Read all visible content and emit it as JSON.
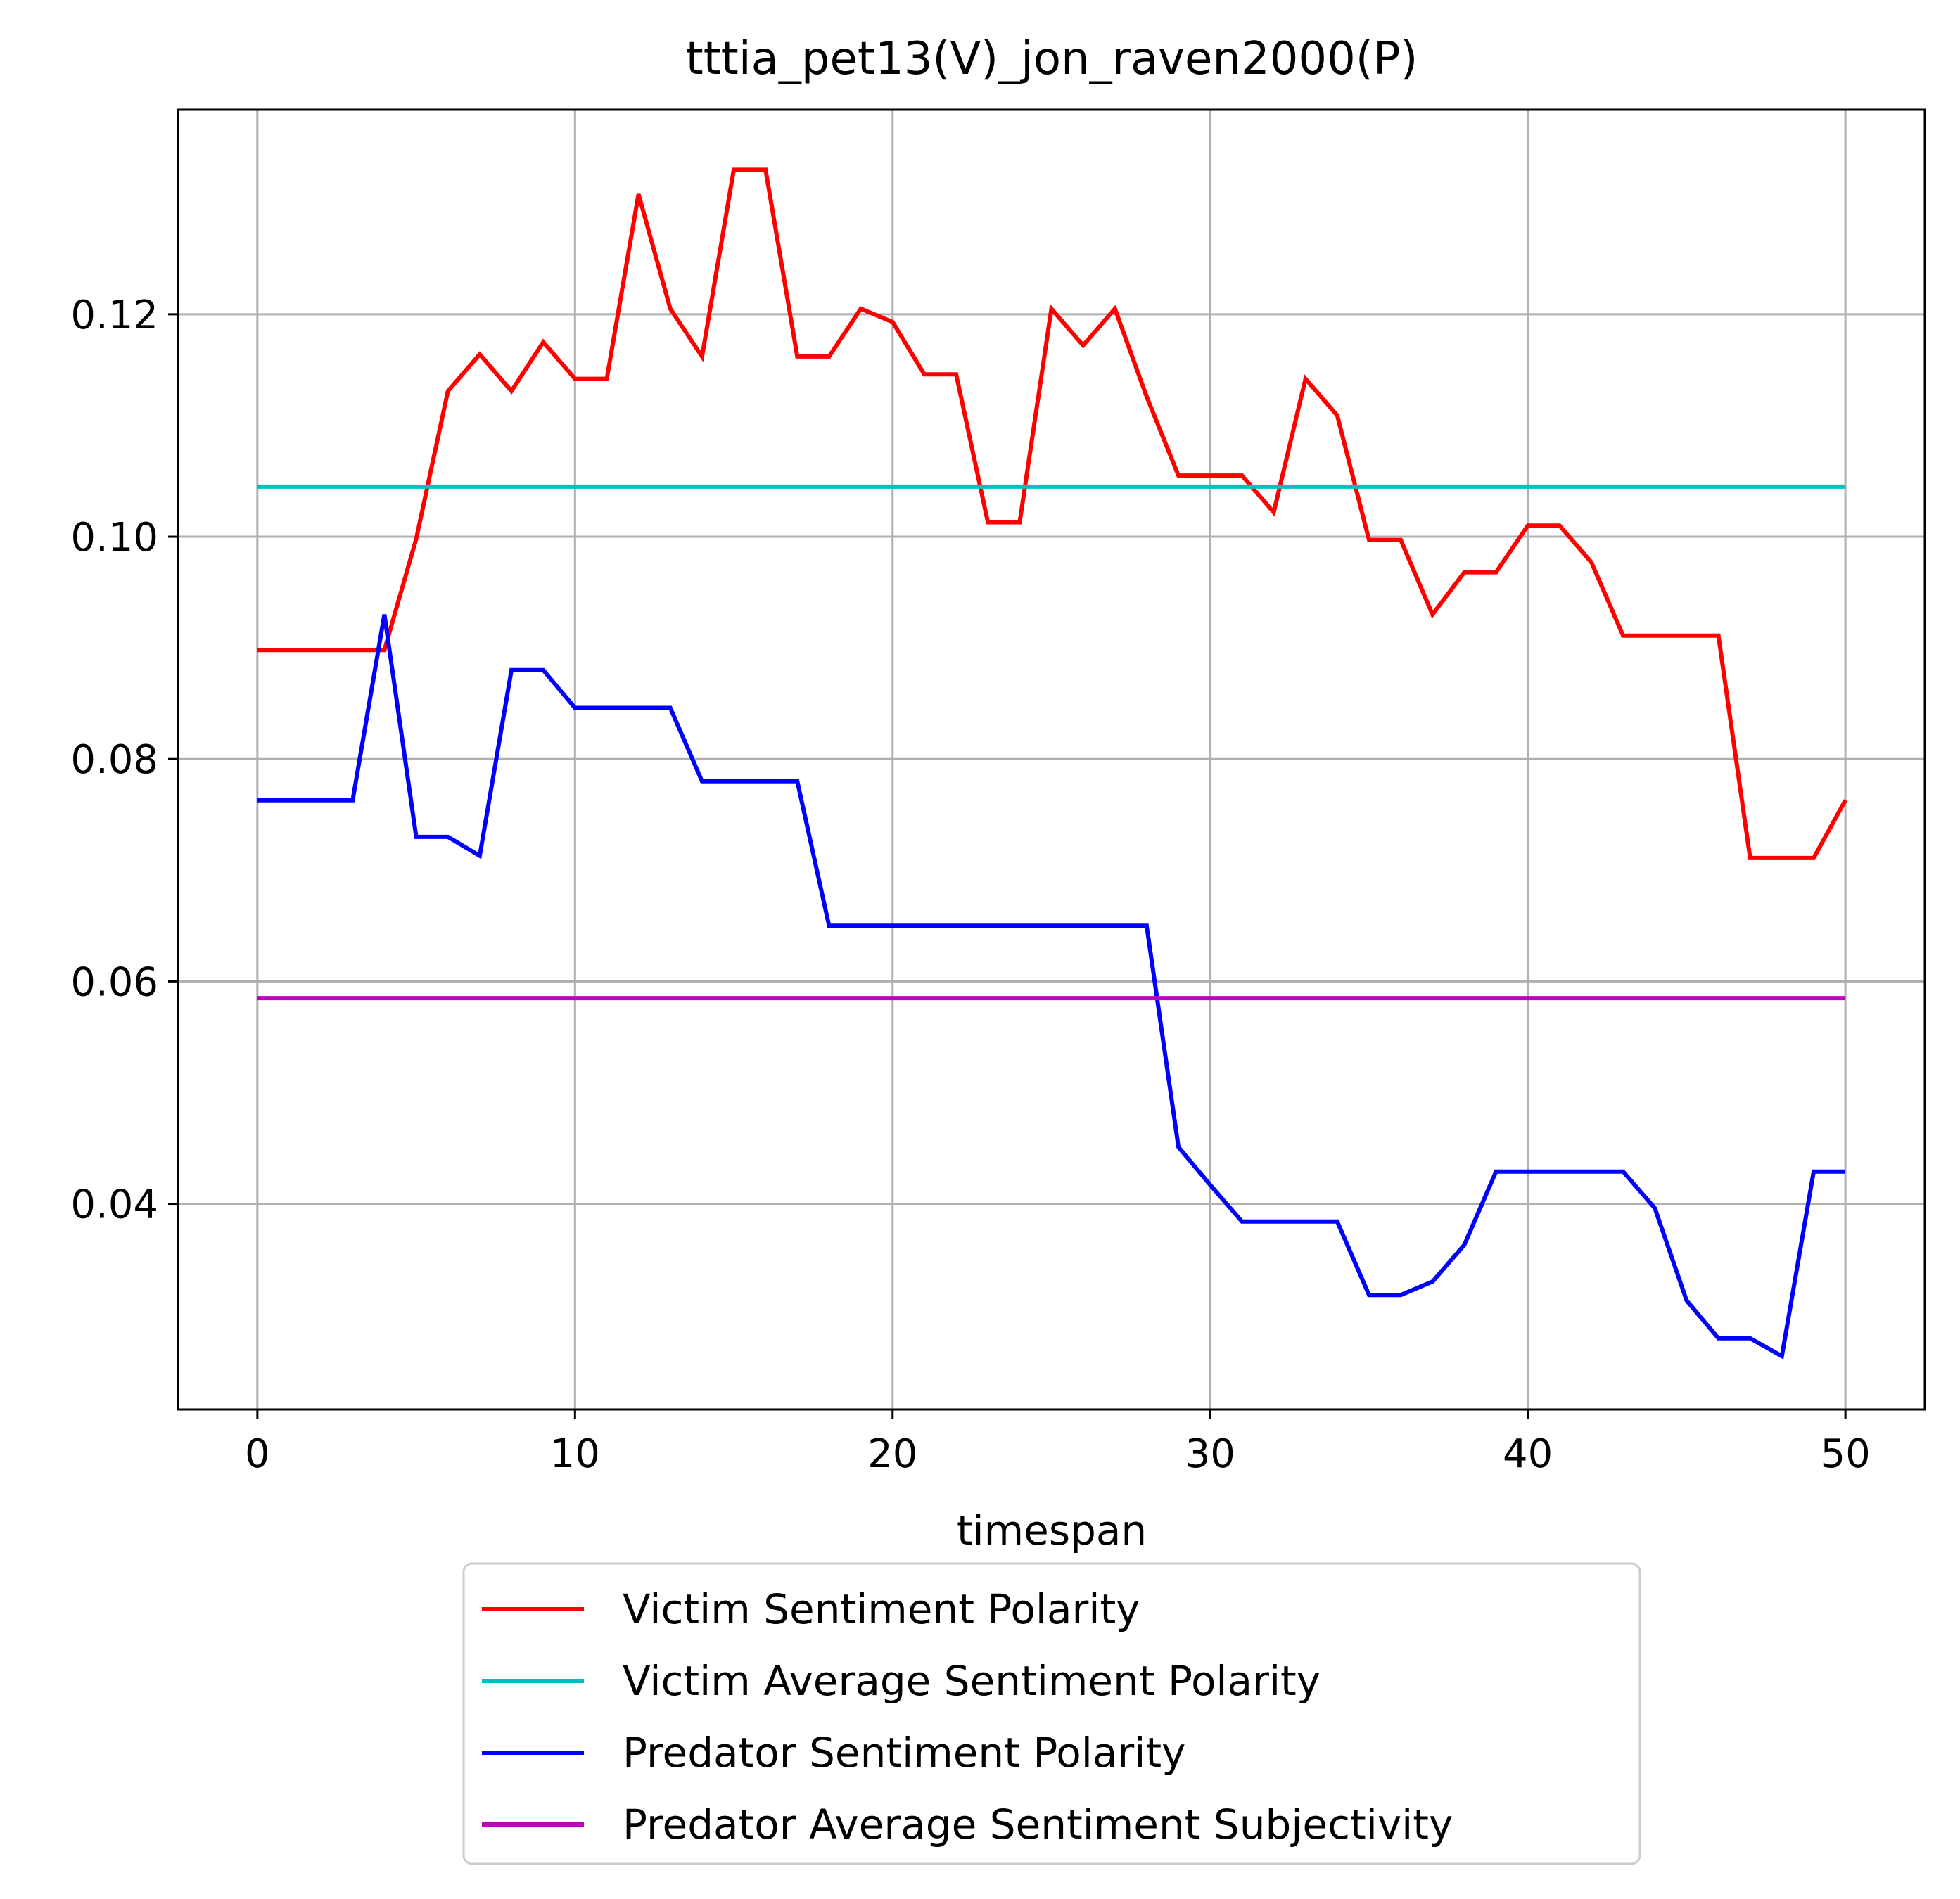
{
  "chart_data": {
    "type": "line",
    "title": "tttia_pet13(V)_jon_raven2000(P)",
    "xlabel": "timespan",
    "ylabel": "",
    "xlim": [
      -2.5,
      52.5
    ],
    "ylim": [
      0.0215,
      0.1384
    ],
    "xticks": [
      0,
      10,
      20,
      30,
      40,
      50
    ],
    "yticks": [
      0.04,
      0.06,
      0.08,
      0.1,
      0.12
    ],
    "xtick_labels": [
      "0",
      "10",
      "20",
      "30",
      "40",
      "50"
    ],
    "ytick_labels": [
      "0.04",
      "0.06",
      "0.08",
      "0.10",
      "0.12"
    ],
    "grid": true,
    "legend_position": "below plot, centered",
    "x": [
      0,
      1,
      2,
      3,
      4,
      5,
      6,
      7,
      8,
      9,
      10,
      11,
      12,
      13,
      14,
      15,
      16,
      17,
      18,
      19,
      20,
      21,
      22,
      23,
      24,
      25,
      26,
      27,
      28,
      29,
      30,
      31,
      32,
      33,
      34,
      35,
      36,
      37,
      38,
      39,
      40,
      41,
      42,
      43,
      44,
      45,
      46,
      47,
      48,
      49,
      50
    ],
    "series": [
      {
        "name": "Victim Sentiment Polarity",
        "color": "#ff0000",
        "values": [
          0.0898,
          0.0898,
          0.0898,
          0.0898,
          0.0898,
          0.0998,
          0.1131,
          0.1164,
          0.1131,
          0.1175,
          0.1142,
          0.1142,
          0.1308,
          0.1205,
          0.1162,
          0.133,
          0.133,
          0.1162,
          0.1162,
          0.1205,
          0.1193,
          0.1146,
          0.1146,
          0.1013,
          0.1013,
          0.1205,
          0.1172,
          0.1205,
          0.1126,
          0.1055,
          0.1055,
          0.1055,
          0.1022,
          0.1142,
          0.1109,
          0.0997,
          0.0997,
          0.093,
          0.0968,
          0.0968,
          0.101,
          0.101,
          0.0977,
          0.0911,
          0.0911,
          0.0911,
          0.0911,
          0.0711,
          0.0711,
          0.0711,
          0.0763
        ]
      },
      {
        "name": "Victim Average Sentiment Polarity",
        "color": "#00bfbf",
        "values": [
          0.1045,
          0.1045,
          0.1045,
          0.1045,
          0.1045,
          0.1045,
          0.1045,
          0.1045,
          0.1045,
          0.1045,
          0.1045,
          0.1045,
          0.1045,
          0.1045,
          0.1045,
          0.1045,
          0.1045,
          0.1045,
          0.1045,
          0.1045,
          0.1045,
          0.1045,
          0.1045,
          0.1045,
          0.1045,
          0.1045,
          0.1045,
          0.1045,
          0.1045,
          0.1045,
          0.1045,
          0.1045,
          0.1045,
          0.1045,
          0.1045,
          0.1045,
          0.1045,
          0.1045,
          0.1045,
          0.1045,
          0.1045,
          0.1045,
          0.1045,
          0.1045,
          0.1045,
          0.1045,
          0.1045,
          0.1045,
          0.1045,
          0.1045,
          0.1045
        ]
      },
      {
        "name": "Predator Sentiment Polarity",
        "color": "#0000ff",
        "values": [
          0.0763,
          0.0763,
          0.0763,
          0.0763,
          0.093,
          0.073,
          0.073,
          0.0713,
          0.088,
          0.088,
          0.0846,
          0.0846,
          0.0846,
          0.0846,
          0.078,
          0.078,
          0.078,
          0.078,
          0.065,
          0.065,
          0.065,
          0.065,
          0.065,
          0.065,
          0.065,
          0.065,
          0.065,
          0.065,
          0.065,
          0.0451,
          0.0417,
          0.0384,
          0.0384,
          0.0384,
          0.0384,
          0.0318,
          0.0318,
          0.033,
          0.0363,
          0.0429,
          0.0429,
          0.0429,
          0.0429,
          0.0429,
          0.0396,
          0.0313,
          0.0279,
          0.0279,
          0.0263,
          0.0429,
          0.0429
        ]
      },
      {
        "name": "Predator Average Sentiment Subjectivity",
        "color": "#bf00bf",
        "values": [
          0.0585,
          0.0585,
          0.0585,
          0.0585,
          0.0585,
          0.0585,
          0.0585,
          0.0585,
          0.0585,
          0.0585,
          0.0585,
          0.0585,
          0.0585,
          0.0585,
          0.0585,
          0.0585,
          0.0585,
          0.0585,
          0.0585,
          0.0585,
          0.0585,
          0.0585,
          0.0585,
          0.0585,
          0.0585,
          0.0585,
          0.0585,
          0.0585,
          0.0585,
          0.0585,
          0.0585,
          0.0585,
          0.0585,
          0.0585,
          0.0585,
          0.0585,
          0.0585,
          0.0585,
          0.0585,
          0.0585,
          0.0585,
          0.0585,
          0.0585,
          0.0585,
          0.0585,
          0.0585,
          0.0585,
          0.0585,
          0.0585,
          0.0585,
          0.0585
        ]
      }
    ]
  }
}
